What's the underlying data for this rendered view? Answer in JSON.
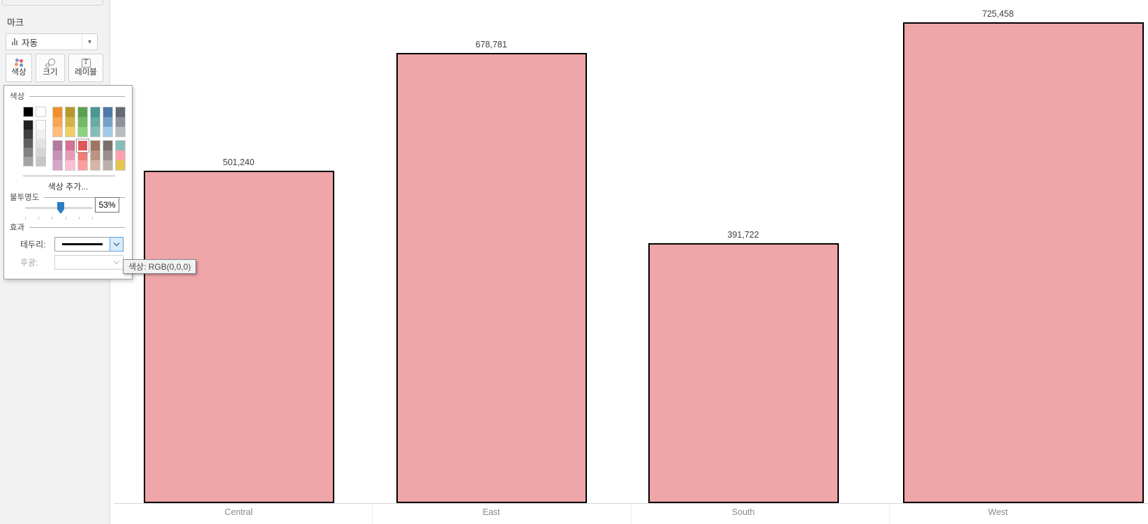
{
  "marks_card": {
    "title": "마크",
    "mark_type_dropdown": {
      "value": "자동"
    },
    "buttons": [
      {
        "id": "color",
        "label": "색상"
      },
      {
        "id": "size",
        "label": "크기"
      },
      {
        "id": "label",
        "label": "레이블"
      }
    ]
  },
  "color_panel": {
    "color_section_title": "색상",
    "add_color_label": "색상 추가...",
    "opacity_section_title": "불투명도",
    "opacity_percent": 53,
    "opacity_value_text": "53%",
    "effects_section_title": "효과",
    "border_label": "테두리:",
    "halo_label": "후광:",
    "border_selected_color": "#000000",
    "selected_swatch": {
      "column": 4,
      "cell": 0,
      "color": "#E15759"
    },
    "palette": {
      "columns": [
        {
          "top": [
            "#000000"
          ],
          "bottom": [
            "#212121",
            "#404040",
            "#616161",
            "#828282",
            "#a3a3a3"
          ]
        },
        {
          "top": [
            "#ffffff"
          ],
          "bottom": [
            "#fafafa",
            "#f0f0f0",
            "#e3e3e3",
            "#d6d6d6",
            "#c7c7c7"
          ]
        },
        {
          "top": [
            "#f28e2b",
            "#f9a655",
            "#ffbe7d"
          ],
          "bottom": [
            "#b07aa1",
            "#c491b7",
            "#d4a6c8"
          ]
        },
        {
          "top": [
            "#b6992d",
            "#d2b348",
            "#f1ce63"
          ],
          "bottom": [
            "#d37295",
            "#e89bb9",
            "#fabfd2"
          ]
        },
        {
          "top": [
            "#59a14f",
            "#73ba66",
            "#8cd17d"
          ],
          "bottom": [
            "#e15759",
            "#f07e77",
            "#ff9d9a"
          ]
        },
        {
          "top": [
            "#499894",
            "#68aaa4",
            "#86bcb6"
          ],
          "bottom": [
            "#9d7660",
            "#ba9480",
            "#d7b5a6"
          ]
        },
        {
          "top": [
            "#4e79a7",
            "#77a2c8",
            "#a0cbe8"
          ],
          "bottom": [
            "#79706e",
            "#99918d",
            "#bab0ac"
          ]
        },
        {
          "top": [
            "#646a73",
            "#8c9299",
            "#b8bcc0"
          ],
          "bottom": [
            "#86bcb6",
            "#ffa1ac",
            "#e6c44e"
          ]
        }
      ]
    }
  },
  "tooltip": {
    "text": "색상: RGB(0,0,0)"
  },
  "chart_data": {
    "type": "bar",
    "categories": [
      "Central",
      "East",
      "South",
      "West"
    ],
    "values": [
      501240,
      678781,
      391722,
      725458
    ],
    "value_labels": [
      "501,240",
      "678,781",
      "391,722",
      "725,458"
    ],
    "title": "",
    "xlabel": "",
    "ylabel": "",
    "ylim": [
      0,
      725458
    ],
    "grid": false,
    "legend": false,
    "bar_color": "#efa6a8",
    "bar_border_color": "#000000",
    "bar_opacity_percent": 53
  }
}
